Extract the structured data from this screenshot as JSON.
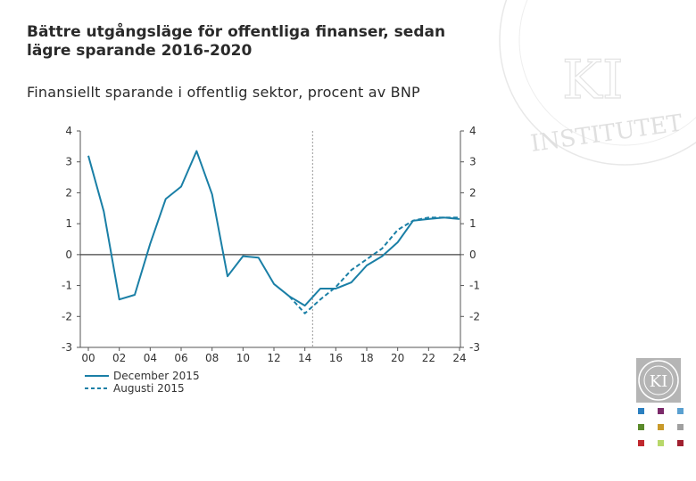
{
  "header": {
    "title": "Bättre utgångsläge för offentliga finanser, sedan lägre sparande 2016-2020",
    "subtitle": "Finansiellt sparande i offentlig sektor, procent av BNP"
  },
  "brand": {
    "watermark_text": "INSTITUTET",
    "logo_text": "KI"
  },
  "colors": {
    "series": "#1a7fa6",
    "axis": "#555555",
    "zero_line": "#444444",
    "divider": "#999999",
    "watermark": "#e3e3e3",
    "swatches": [
      "#2b7fc0",
      "#7b2a6a",
      "#5aa0d0",
      "#5a8a2a",
      "#c99a2a",
      "#a0a0a0",
      "#c0282e",
      "#b8d86a",
      "#a02030"
    ]
  },
  "chart_data": {
    "type": "line",
    "title": "Finansiellt sparande i offentlig sektor, procent av BNP",
    "xlabel": "",
    "ylabel": "",
    "xlim": [
      2000,
      2024
    ],
    "ylim": [
      -3,
      4
    ],
    "x_tick_labels": [
      "00",
      "02",
      "04",
      "06",
      "08",
      "10",
      "12",
      "14",
      "16",
      "18",
      "20",
      "22",
      "24"
    ],
    "x_tick_values": [
      2000,
      2002,
      2004,
      2006,
      2008,
      2010,
      2012,
      2014,
      2016,
      2018,
      2020,
      2022,
      2024
    ],
    "y_ticks": [
      4,
      3,
      2,
      1,
      0,
      -1,
      -2,
      -3
    ],
    "forecast_start": 2014.5,
    "legend_position": "bottom-left",
    "series": [
      {
        "name": "December 2015",
        "style": "solid",
        "x": [
          2000,
          2001,
          2002,
          2003,
          2004,
          2005,
          2006,
          2007,
          2008,
          2009,
          2010,
          2011,
          2012,
          2013,
          2014,
          2015,
          2016,
          2017,
          2018,
          2019,
          2020,
          2021,
          2022,
          2023,
          2024
        ],
        "values": [
          3.2,
          1.4,
          -1.45,
          -1.3,
          0.35,
          1.8,
          2.2,
          3.35,
          1.95,
          -0.7,
          -0.05,
          -0.1,
          -0.95,
          -1.35,
          -1.65,
          -1.1,
          -1.1,
          -0.9,
          -0.35,
          -0.05,
          0.4,
          1.1,
          1.15,
          1.2,
          1.15
        ]
      },
      {
        "name": "Augusti 2015",
        "style": "dashed",
        "x": [
          2013,
          2014,
          2015,
          2016,
          2017,
          2018,
          2019,
          2020,
          2021,
          2022,
          2023,
          2024
        ],
        "values": [
          -1.35,
          -1.9,
          -1.45,
          -1.05,
          -0.5,
          -0.15,
          0.2,
          0.8,
          1.1,
          1.2,
          1.2,
          1.2
        ]
      }
    ]
  }
}
